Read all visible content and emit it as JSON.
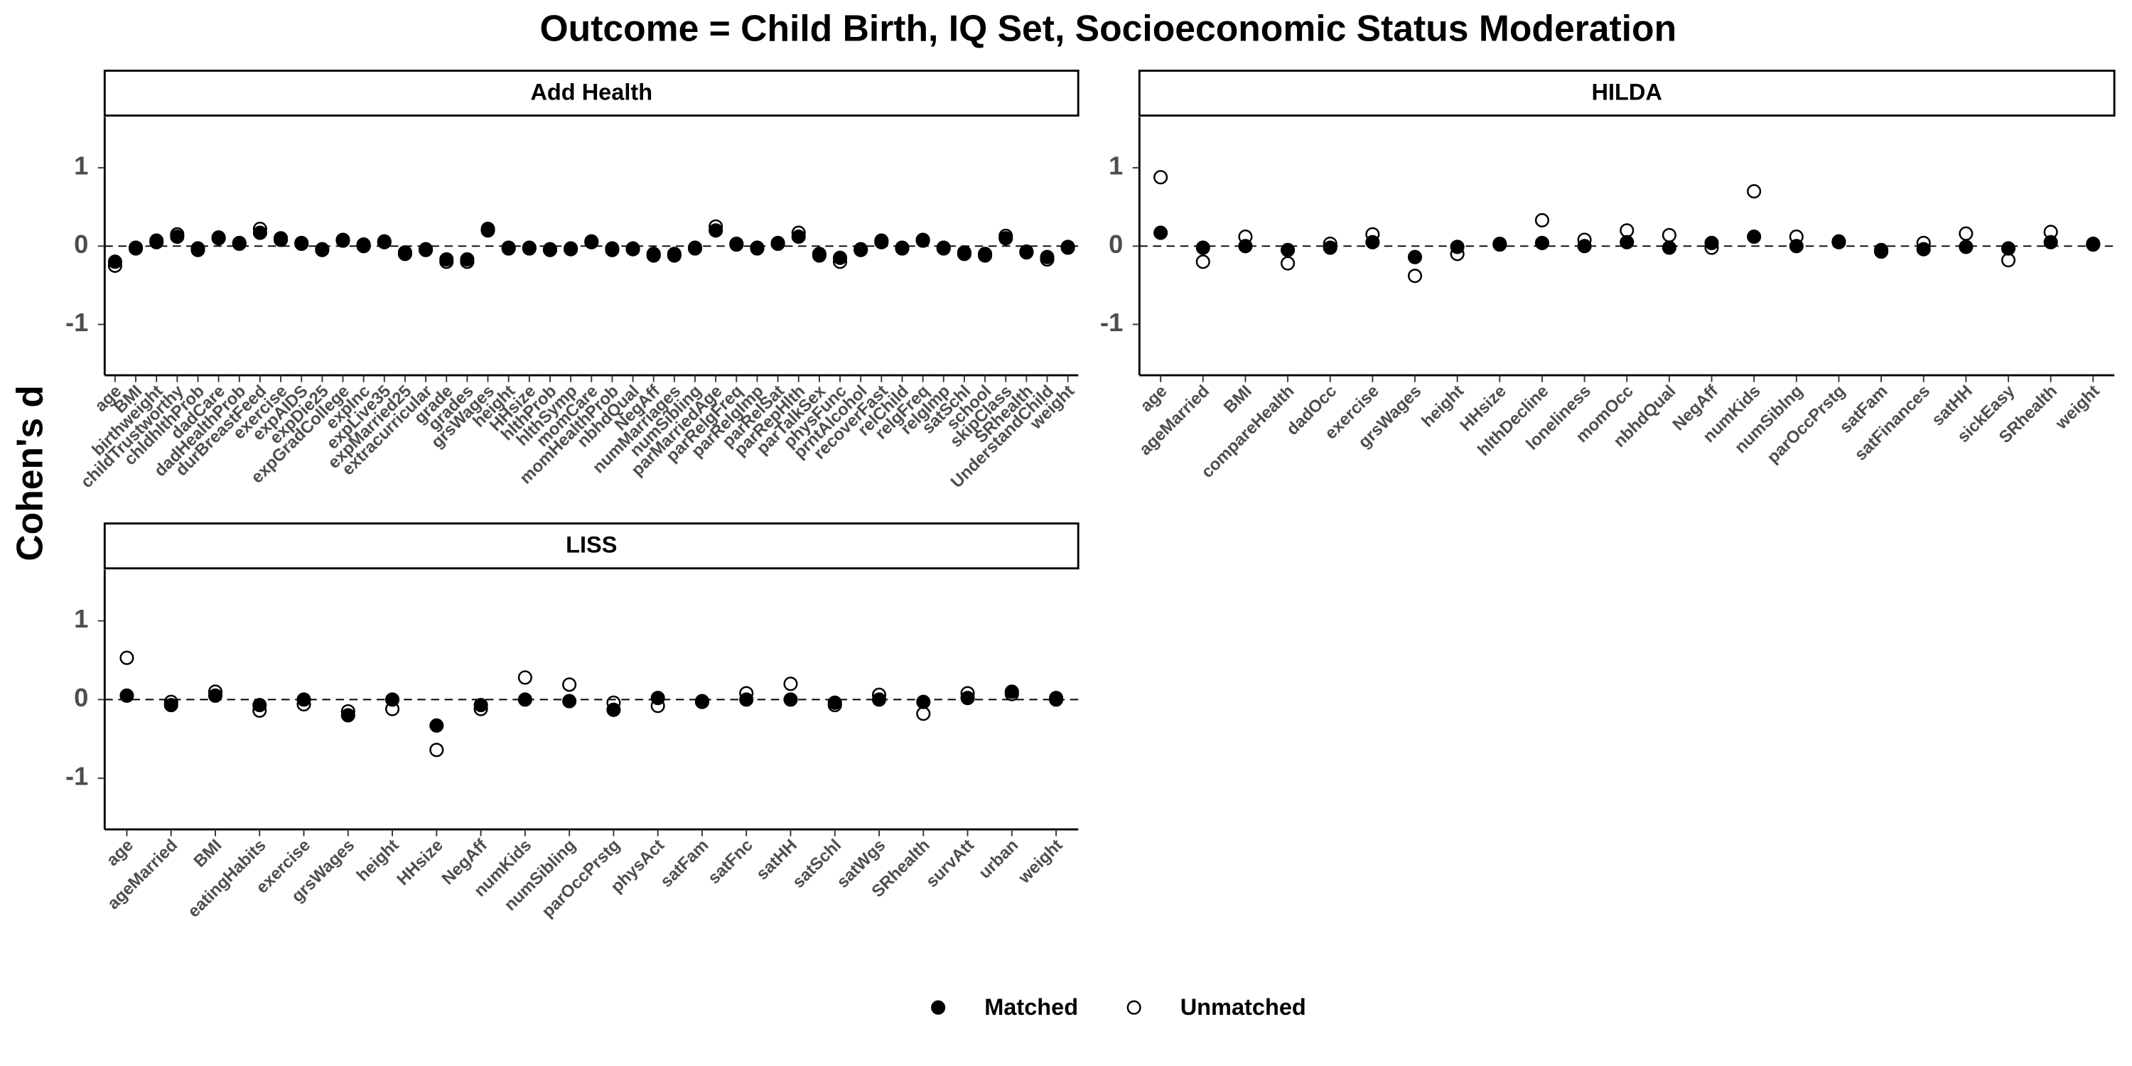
{
  "title": "Outcome = Child Birth, IQ Set, Socioeconomic Status Moderation",
  "y_label": "Cohen's d",
  "chart_data": [
    {
      "type": "scatter",
      "title": "Add Health",
      "categories": [
        "age",
        "BMI",
        "birthweight",
        "childTrustworthy",
        "chldhlthProb",
        "dadCare",
        "dadHealthProb",
        "durBreastFeed",
        "exercise",
        "expAIDS",
        "expDie25",
        "expGradCollege",
        "expInc",
        "expLive35",
        "expMarried25",
        "extracurricular",
        "grade",
        "grades",
        "grsWages",
        "height",
        "HHsize",
        "hlthProb",
        "hlthSymp",
        "momCare",
        "momHealthProb",
        "nbhdQual",
        "NegAff",
        "numMarriages",
        "numSibling",
        "parMarriedAge",
        "parRelgFreq",
        "parRelgImp",
        "parRelSat",
        "parRepHlth",
        "parTalkSex",
        "physFunc",
        "prntAlcohol",
        "recoverFast",
        "relChild",
        "relgFreq",
        "relgImp",
        "satSchl",
        "school",
        "skipClass",
        "SRhealth",
        "UnderstandChild",
        "weight"
      ],
      "series": [
        {
          "name": "Matched",
          "color": "#000000",
          "marker": "filled",
          "values": [
            -0.2,
            -0.03,
            0.05,
            0.12,
            -0.05,
            0.1,
            0.03,
            0.17,
            0.1,
            0.03,
            -0.05,
            0.07,
            0.0,
            0.05,
            -0.1,
            -0.05,
            -0.17,
            -0.17,
            0.22,
            -0.03,
            -0.03,
            -0.05,
            -0.04,
            0.05,
            -0.05,
            -0.04,
            -0.12,
            -0.1,
            -0.03,
            0.2,
            0.02,
            -0.03,
            0.03,
            0.12,
            -0.12,
            -0.15,
            -0.05,
            0.07,
            -0.03,
            0.07,
            -0.03,
            -0.08,
            -0.1,
            0.1,
            -0.08,
            -0.14,
            -0.02
          ]
        },
        {
          "name": "Unmatched",
          "color": "#000000",
          "marker": "open",
          "values": [
            -0.25,
            -0.02,
            0.07,
            0.15,
            -0.03,
            0.11,
            0.04,
            0.22,
            0.08,
            0.04,
            -0.04,
            0.08,
            0.02,
            0.06,
            -0.08,
            -0.04,
            -0.2,
            -0.2,
            0.2,
            -0.02,
            -0.02,
            -0.04,
            -0.03,
            0.06,
            -0.03,
            -0.03,
            -0.1,
            -0.12,
            -0.02,
            0.25,
            0.03,
            -0.02,
            0.04,
            0.17,
            -0.1,
            -0.2,
            -0.04,
            0.05,
            -0.02,
            0.08,
            -0.02,
            -0.1,
            -0.12,
            0.13,
            -0.07,
            -0.17,
            -0.01
          ]
        }
      ],
      "ylim": [
        -1.65,
        1.65
      ],
      "yticks": [
        -1,
        0,
        1
      ],
      "reference_line": 0
    },
    {
      "type": "scatter",
      "title": "HILDA",
      "categories": [
        "age",
        "ageMarried",
        "BMI",
        "compareHealth",
        "dadOcc",
        "exercise",
        "grsWages",
        "height",
        "HHsize",
        "hlthDecline",
        "loneliness",
        "momOcc",
        "nbhdQual",
        "NegAff",
        "numKids",
        "numSiblng",
        "parOccPrstg",
        "satFam",
        "satFinances",
        "satHH",
        "sickEasy",
        "SRhealth",
        "weight"
      ],
      "series": [
        {
          "name": "Matched",
          "color": "#000000",
          "marker": "filled",
          "values": [
            0.17,
            -0.02,
            0.0,
            -0.05,
            -0.02,
            0.05,
            -0.14,
            -0.01,
            0.02,
            0.04,
            0.0,
            0.05,
            -0.02,
            0.04,
            0.12,
            0.0,
            0.05,
            -0.07,
            -0.04,
            -0.01,
            -0.03,
            0.05,
            0.02
          ]
        },
        {
          "name": "Unmatched",
          "color": "#000000",
          "marker": "open",
          "values": [
            0.88,
            -0.2,
            0.12,
            -0.22,
            0.03,
            0.15,
            -0.38,
            -0.1,
            0.03,
            0.33,
            0.08,
            0.2,
            0.14,
            -0.02,
            0.7,
            0.12,
            0.06,
            -0.05,
            0.04,
            0.16,
            -0.18,
            0.18,
            0.03
          ]
        }
      ],
      "ylim": [
        -1.65,
        1.65
      ],
      "yticks": [
        -1,
        0,
        1
      ],
      "reference_line": 0
    },
    {
      "type": "scatter",
      "title": "LISS",
      "categories": [
        "age",
        "ageMarried",
        "BMI",
        "eatingHabits",
        "exercise",
        "grsWages",
        "height",
        "HHsize",
        "NegAff",
        "numKids",
        "numSibling",
        "parOccPrstg",
        "physAct",
        "satFam",
        "satFnc",
        "satHH",
        "satSchl",
        "satWgs",
        "SRhealth",
        "survAtt",
        "urban",
        "weight"
      ],
      "series": [
        {
          "name": "Matched",
          "color": "#000000",
          "marker": "filled",
          "values": [
            0.05,
            -0.07,
            0.05,
            -0.07,
            0.0,
            -0.2,
            0.0,
            -0.33,
            -0.07,
            0.0,
            -0.02,
            -0.13,
            0.02,
            -0.03,
            0.0,
            0.0,
            -0.04,
            0.0,
            -0.03,
            0.02,
            0.1,
            0.02
          ]
        },
        {
          "name": "Unmatched",
          "color": "#000000",
          "marker": "open",
          "values": [
            0.53,
            -0.03,
            0.1,
            -0.14,
            -0.06,
            -0.15,
            -0.12,
            -0.64,
            -0.12,
            0.28,
            0.19,
            -0.04,
            -0.08,
            -0.02,
            0.08,
            0.2,
            -0.07,
            0.06,
            -0.18,
            0.08,
            0.07,
            0.0
          ]
        }
      ],
      "ylim": [
        -1.65,
        1.65
      ],
      "yticks": [
        -1,
        0,
        1
      ],
      "reference_line": 0
    }
  ]
}
